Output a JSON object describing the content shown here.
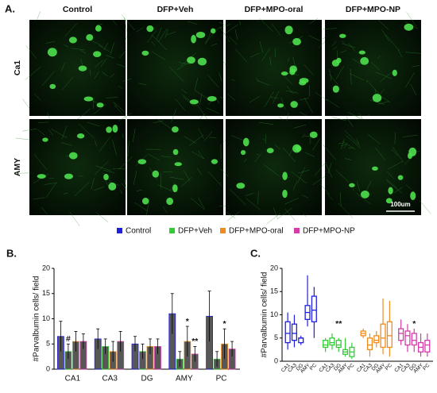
{
  "panel_a": {
    "label": "A.",
    "columns": [
      "Control",
      "DFP+Veh",
      "DFP+MPO-oral",
      "DFP+MPO-NP"
    ],
    "rows": [
      "Ca1",
      "AMY"
    ],
    "scale_bar": "100um"
  },
  "chart_data": [
    {
      "type": "bar",
      "panel_label": "B.",
      "y_label": "#Parvalbumin cells/ field",
      "categories": [
        "CA1",
        "CA3",
        "DG",
        "AMY",
        "PC"
      ],
      "series": [
        {
          "name": "Control",
          "color": "#1f1fe0",
          "values": [
            6.5,
            6,
            5,
            11,
            10.5
          ],
          "errors": [
            3,
            2,
            1.5,
            4,
            5
          ]
        },
        {
          "name": "DFP+Veh",
          "color": "#33cc33",
          "values": [
            3.5,
            4.5,
            3.5,
            2,
            2
          ],
          "errors": [
            1.5,
            1.5,
            1.5,
            1.5,
            1.5
          ]
        },
        {
          "name": "DFP+MPO-oral",
          "color": "#f08c1e",
          "values": [
            5.5,
            3.5,
            4.5,
            5.5,
            5
          ],
          "errors": [
            2,
            2,
            1.5,
            3,
            3
          ]
        },
        {
          "name": "DFP+MPO-NP",
          "color": "#d43ca8",
          "values": [
            5.5,
            5.5,
            4.5,
            3,
            4
          ],
          "errors": [
            1.5,
            2,
            1.5,
            1.5,
            1.5
          ]
        }
      ],
      "ylim": [
        0,
        20
      ],
      "yticks": [
        0,
        5,
        10,
        15,
        20
      ],
      "annotations": [
        "#",
        "*",
        "**",
        "*"
      ]
    },
    {
      "type": "box",
      "panel_label": "C.",
      "y_label": "#Parvalbumin cells/ field",
      "categories": [
        "CA1",
        "CA3",
        "DG",
        "AMY",
        "PC"
      ],
      "series": [
        {
          "color": "#1f1fe0",
          "boxes": [
            [
              2.5,
              4,
              6,
              8.5,
              10.5
            ],
            [
              3,
              4.5,
              6,
              8,
              10
            ],
            [
              3.5,
              4,
              5,
              5,
              5.5
            ],
            [
              7.5,
              9,
              10.5,
              12,
              18.5
            ],
            [
              5,
              8.5,
              11,
              14,
              16
            ]
          ]
        },
        {
          "color": "#33cc33",
          "boxes": [
            [
              2,
              3,
              3.5,
              4.5,
              5
            ],
            [
              2.5,
              3.5,
              4,
              5,
              6
            ],
            [
              2,
              3,
              3.5,
              4.5,
              5
            ],
            [
              1,
              1.5,
              2,
              2.5,
              5
            ],
            [
              0.5,
              1,
              2,
              3,
              4
            ]
          ]
        },
        {
          "color": "#f08c1e",
          "boxes": [
            [
              5,
              5.5,
              6,
              6.5,
              7
            ],
            [
              1,
              2.5,
              3.5,
              5,
              6
            ],
            [
              3,
              4,
              4.5,
              5.5,
              6.5
            ],
            [
              1.5,
              3,
              5,
              8,
              13.5
            ],
            [
              1,
              3,
              5.5,
              8.5,
              13
            ]
          ]
        },
        {
          "color": "#d43ca8",
          "boxes": [
            [
              3.5,
              4.5,
              6,
              7,
              9
            ],
            [
              2,
              3.5,
              5.5,
              6.5,
              8
            ],
            [
              2,
              3.5,
              4.5,
              6,
              7
            ],
            [
              1,
              2,
              3,
              4,
              6
            ],
            [
              1,
              2,
              3.5,
              4.5,
              6
            ]
          ]
        }
      ],
      "ylim": [
        0,
        20
      ],
      "yticks": [
        0,
        5,
        10,
        15,
        20
      ],
      "annotations": [
        "**",
        "*"
      ]
    }
  ]
}
